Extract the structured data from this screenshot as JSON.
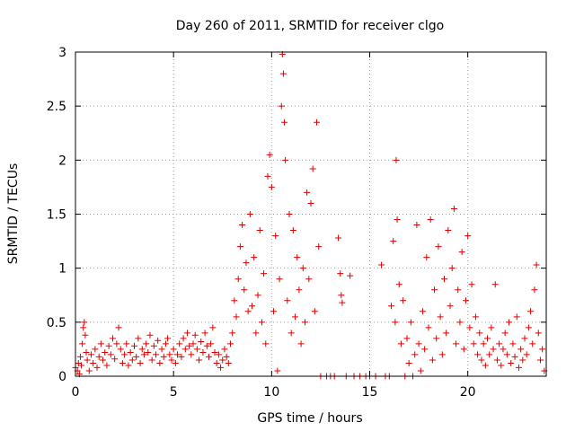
{
  "chart_data": {
    "type": "scatter",
    "title": "Day 260 of 2011, SRMTID for receiver clgo",
    "xlabel": "GPS time / hours",
    "ylabel": "SRMTID / TECUs",
    "xlim": [
      0,
      24
    ],
    "ylim": [
      0,
      3
    ],
    "xticks": [
      0,
      5,
      10,
      15,
      20
    ],
    "xtick_labels": [
      "0",
      "5",
      "10",
      "15",
      "20"
    ],
    "yticks": [
      0,
      0.5,
      1,
      1.5,
      2,
      2.5,
      3
    ],
    "ytick_labels": [
      "0",
      "0.5",
      "1",
      "1.5",
      "2",
      "2.5",
      "3"
    ],
    "grid": true,
    "marker": "plus",
    "color": "#e00000",
    "series": [
      {
        "name": "SRMTID",
        "points": [
          [
            0.0,
            0.08
          ],
          [
            0.1,
            0.05
          ],
          [
            0.15,
            0.12
          ],
          [
            0.2,
            0.02
          ],
          [
            0.25,
            0.18
          ],
          [
            0.3,
            0.1
          ],
          [
            0.35,
            0.3
          ],
          [
            0.4,
            0.45
          ],
          [
            0.45,
            0.5
          ],
          [
            0.5,
            0.38
          ],
          [
            0.55,
            0.22
          ],
          [
            0.6,
            0.15
          ],
          [
            0.7,
            0.05
          ],
          [
            0.8,
            0.2
          ],
          [
            0.9,
            0.12
          ],
          [
            1.0,
            0.25
          ],
          [
            1.1,
            0.08
          ],
          [
            1.2,
            0.18
          ],
          [
            1.3,
            0.3
          ],
          [
            1.4,
            0.15
          ],
          [
            1.5,
            0.22
          ],
          [
            1.6,
            0.1
          ],
          [
            1.7,
            0.28
          ],
          [
            1.8,
            0.2
          ],
          [
            1.9,
            0.35
          ],
          [
            2.0,
            0.16
          ],
          [
            2.1,
            0.3
          ],
          [
            2.2,
            0.45
          ],
          [
            2.3,
            0.25
          ],
          [
            2.4,
            0.12
          ],
          [
            2.5,
            0.2
          ],
          [
            2.6,
            0.3
          ],
          [
            2.7,
            0.1
          ],
          [
            2.8,
            0.22
          ],
          [
            2.9,
            0.15
          ],
          [
            3.0,
            0.28
          ],
          [
            3.1,
            0.18
          ],
          [
            3.2,
            0.35
          ],
          [
            3.3,
            0.12
          ],
          [
            3.4,
            0.25
          ],
          [
            3.5,
            0.2
          ],
          [
            3.6,
            0.3
          ],
          [
            3.7,
            0.22
          ],
          [
            3.8,
            0.38
          ],
          [
            3.9,
            0.15
          ],
          [
            4.0,
            0.28
          ],
          [
            4.1,
            0.2
          ],
          [
            4.2,
            0.33
          ],
          [
            4.3,
            0.12
          ],
          [
            4.4,
            0.25
          ],
          [
            4.5,
            0.18
          ],
          [
            4.6,
            0.3
          ],
          [
            4.7,
            0.35
          ],
          [
            4.8,
            0.2
          ],
          [
            4.9,
            0.15
          ],
          [
            5.0,
            0.25
          ],
          [
            5.1,
            0.12
          ],
          [
            5.2,
            0.2
          ],
          [
            5.3,
            0.3
          ],
          [
            5.4,
            0.18
          ],
          [
            5.5,
            0.35
          ],
          [
            5.6,
            0.25
          ],
          [
            5.7,
            0.4
          ],
          [
            5.8,
            0.28
          ],
          [
            5.9,
            0.2
          ],
          [
            6.0,
            0.3
          ],
          [
            6.1,
            0.38
          ],
          [
            6.2,
            0.25
          ],
          [
            6.3,
            0.15
          ],
          [
            6.4,
            0.32
          ],
          [
            6.5,
            0.22
          ],
          [
            6.6,
            0.4
          ],
          [
            6.7,
            0.28
          ],
          [
            6.8,
            0.18
          ],
          [
            6.9,
            0.3
          ],
          [
            7.0,
            0.45
          ],
          [
            7.1,
            0.22
          ],
          [
            7.2,
            0.12
          ],
          [
            7.3,
            0.2
          ],
          [
            7.4,
            0.08
          ],
          [
            7.5,
            0.15
          ],
          [
            7.6,
            0.25
          ],
          [
            7.7,
            0.18
          ],
          [
            7.8,
            0.12
          ],
          [
            7.9,
            0.3
          ],
          [
            8.0,
            0.4
          ],
          [
            8.1,
            0.7
          ],
          [
            8.2,
            0.55
          ],
          [
            8.3,
            0.9
          ],
          [
            8.4,
            1.2
          ],
          [
            8.5,
            1.4
          ],
          [
            8.6,
            0.8
          ],
          [
            8.7,
            1.05
          ],
          [
            8.8,
            0.6
          ],
          [
            8.9,
            1.5
          ],
          [
            9.0,
            0.65
          ],
          [
            9.1,
            1.1
          ],
          [
            9.2,
            0.4
          ],
          [
            9.3,
            0.75
          ],
          [
            9.4,
            1.35
          ],
          [
            9.5,
            0.5
          ],
          [
            9.6,
            0.95
          ],
          [
            9.7,
            0.3
          ],
          [
            9.8,
            1.85
          ],
          [
            9.9,
            2.05
          ],
          [
            10.0,
            1.75
          ],
          [
            10.1,
            0.6
          ],
          [
            10.2,
            1.3
          ],
          [
            10.3,
            0.05
          ],
          [
            10.4,
            0.9
          ],
          [
            10.5,
            2.5
          ],
          [
            10.55,
            2.98
          ],
          [
            10.6,
            2.8
          ],
          [
            10.65,
            2.35
          ],
          [
            10.7,
            2.0
          ],
          [
            10.8,
            0.7
          ],
          [
            10.9,
            1.5
          ],
          [
            11.0,
            0.4
          ],
          [
            11.1,
            1.35
          ],
          [
            11.2,
            0.55
          ],
          [
            11.3,
            1.1
          ],
          [
            11.4,
            0.8
          ],
          [
            11.5,
            0.3
          ],
          [
            11.6,
            1.0
          ],
          [
            11.7,
            0.5
          ],
          [
            11.8,
            1.7
          ],
          [
            11.9,
            0.9
          ],
          [
            12.0,
            1.6
          ],
          [
            12.1,
            1.92
          ],
          [
            12.2,
            0.6
          ],
          [
            12.3,
            2.35
          ],
          [
            12.4,
            1.2
          ],
          [
            12.5,
            0.0
          ],
          [
            12.8,
            0.0
          ],
          [
            13.0,
            0.0
          ],
          [
            13.2,
            0.0
          ],
          [
            13.4,
            1.28
          ],
          [
            13.5,
            0.95
          ],
          [
            13.55,
            0.75
          ],
          [
            13.6,
            0.68
          ],
          [
            13.8,
            0.0
          ],
          [
            14.0,
            0.93
          ],
          [
            14.2,
            0.0
          ],
          [
            14.5,
            0.0
          ],
          [
            14.8,
            0.0
          ],
          [
            15.0,
            0.0
          ],
          [
            15.3,
            0.0
          ],
          [
            15.6,
            1.03
          ],
          [
            15.8,
            0.0
          ],
          [
            16.0,
            0.0
          ],
          [
            16.1,
            0.65
          ],
          [
            16.2,
            1.25
          ],
          [
            16.3,
            0.5
          ],
          [
            16.35,
            2.0
          ],
          [
            16.4,
            1.45
          ],
          [
            16.5,
            0.85
          ],
          [
            16.6,
            0.3
          ],
          [
            16.7,
            0.7
          ],
          [
            16.8,
            0.0
          ],
          [
            16.9,
            0.35
          ],
          [
            17.0,
            0.12
          ],
          [
            17.1,
            0.5
          ],
          [
            17.2,
            0.0
          ],
          [
            17.3,
            0.2
          ],
          [
            17.4,
            1.4
          ],
          [
            17.5,
            0.3
          ],
          [
            17.6,
            0.05
          ],
          [
            17.7,
            0.6
          ],
          [
            17.8,
            0.25
          ],
          [
            17.9,
            1.1
          ],
          [
            18.0,
            0.45
          ],
          [
            18.1,
            1.45
          ],
          [
            18.2,
            0.15
          ],
          [
            18.3,
            0.8
          ],
          [
            18.4,
            0.35
          ],
          [
            18.5,
            1.2
          ],
          [
            18.6,
            0.55
          ],
          [
            18.7,
            0.2
          ],
          [
            18.8,
            0.9
          ],
          [
            18.9,
            0.4
          ],
          [
            19.0,
            1.35
          ],
          [
            19.1,
            0.65
          ],
          [
            19.2,
            1.0
          ],
          [
            19.3,
            1.55
          ],
          [
            19.4,
            0.3
          ],
          [
            19.5,
            0.8
          ],
          [
            19.6,
            0.5
          ],
          [
            19.7,
            1.15
          ],
          [
            19.8,
            0.25
          ],
          [
            19.9,
            0.7
          ],
          [
            20.0,
            1.3
          ],
          [
            20.1,
            0.45
          ],
          [
            20.2,
            0.85
          ],
          [
            20.3,
            0.3
          ],
          [
            20.4,
            0.55
          ],
          [
            20.5,
            0.2
          ],
          [
            20.6,
            0.4
          ],
          [
            20.7,
            0.15
          ],
          [
            20.8,
            0.3
          ],
          [
            20.9,
            0.1
          ],
          [
            21.0,
            0.35
          ],
          [
            21.1,
            0.2
          ],
          [
            21.2,
            0.45
          ],
          [
            21.3,
            0.25
          ],
          [
            21.4,
            0.85
          ],
          [
            21.5,
            0.15
          ],
          [
            21.6,
            0.3
          ],
          [
            21.7,
            0.1
          ],
          [
            21.8,
            0.25
          ],
          [
            21.9,
            0.4
          ],
          [
            22.0,
            0.2
          ],
          [
            22.1,
            0.5
          ],
          [
            22.2,
            0.12
          ],
          [
            22.3,
            0.3
          ],
          [
            22.4,
            0.18
          ],
          [
            22.5,
            0.55
          ],
          [
            22.6,
            0.08
          ],
          [
            22.7,
            0.25
          ],
          [
            22.8,
            0.15
          ],
          [
            22.9,
            0.35
          ],
          [
            23.0,
            0.2
          ],
          [
            23.1,
            0.45
          ],
          [
            23.2,
            0.6
          ],
          [
            23.3,
            0.3
          ],
          [
            23.4,
            0.8
          ],
          [
            23.5,
            1.03
          ],
          [
            23.6,
            0.4
          ],
          [
            23.7,
            0.15
          ],
          [
            23.8,
            0.25
          ],
          [
            23.9,
            0.05
          ]
        ]
      }
    ]
  }
}
